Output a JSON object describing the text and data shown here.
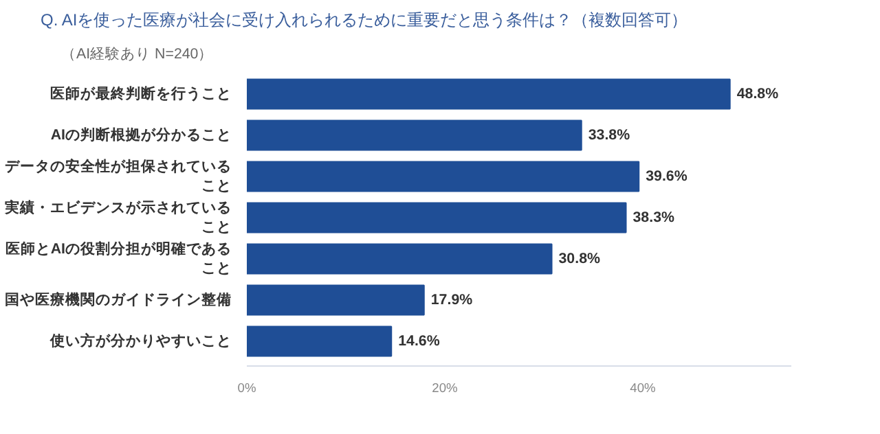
{
  "chart_data": {
    "type": "bar",
    "orientation": "horizontal",
    "title": "Q.  AIを使った医療が社会に受け入れられるために重要だと思う条件は？（複数回答可）",
    "subtitle": "（AI経験あり N=240）",
    "categories": [
      "医師が最終判断を行うこと",
      "AIの判断根拠が分かること",
      "データの安全性が担保されていること",
      "実績・エビデンスが示されていること",
      "医師とAIの役割分担が明確であること",
      "国や医療機関のガイドライン整備",
      "使い方が分かりやすいこと"
    ],
    "values": [
      48.8,
      33.8,
      39.6,
      38.3,
      30.8,
      17.9,
      14.6
    ],
    "color": "#1f4e96",
    "value_labels": [
      "48.8%",
      "33.8%",
      "39.6%",
      "38.3%",
      "30.8%",
      "17.9%",
      "14.6%"
    ],
    "xlim": [
      0,
      55
    ],
    "xticks": [
      {
        "value": 0,
        "label": "0%"
      },
      {
        "value": 20,
        "label": "20%"
      },
      {
        "value": 40,
        "label": "40%"
      }
    ],
    "grid": false
  }
}
